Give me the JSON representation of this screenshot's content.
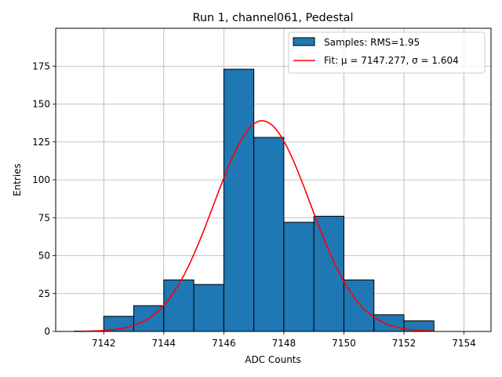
{
  "chart_data": {
    "type": "bar",
    "title": "Run 1, channel061, Pedestal",
    "xlabel": "ADC Counts",
    "ylabel": "Entries",
    "xlim": [
      7140.4,
      7154.9
    ],
    "ylim": [
      0,
      200
    ],
    "grid": true,
    "legend_position": "top-right",
    "x_ticks": [
      "7142",
      "7144",
      "7146",
      "7148",
      "7150",
      "7152",
      "7154"
    ],
    "y_ticks": [
      "0",
      "25",
      "50",
      "75",
      "100",
      "125",
      "150",
      "175"
    ],
    "bins": [
      {
        "x0": 7142,
        "x1": 7143,
        "count": 10
      },
      {
        "x0": 7143,
        "x1": 7144,
        "count": 17
      },
      {
        "x0": 7144,
        "x1": 7145,
        "count": 34
      },
      {
        "x0": 7145,
        "x1": 7146,
        "count": 31
      },
      {
        "x0": 7146,
        "x1": 7147,
        "count": 173
      },
      {
        "x0": 7147,
        "x1": 7148,
        "count": 128
      },
      {
        "x0": 7148,
        "x1": 7149,
        "count": 72
      },
      {
        "x0": 7149,
        "x1": 7150,
        "count": 76
      },
      {
        "x0": 7150,
        "x1": 7151,
        "count": 34
      },
      {
        "x0": 7151,
        "x1": 7152,
        "count": 11
      },
      {
        "x0": 7152,
        "x1": 7153,
        "count": 7
      }
    ],
    "fit": {
      "type": "gaussian",
      "mu": 7147.277,
      "sigma": 1.604,
      "amplitude": 139,
      "x_range": [
        7141,
        7153
      ]
    },
    "legend": [
      {
        "label": "Samples: RMS=1.95",
        "kind": "patch"
      },
      {
        "label": "Fit: μ = 7147.277, σ = 1.604",
        "kind": "line"
      }
    ],
    "colors": {
      "bars": "#1f77b4",
      "bar_edge": "#000000",
      "fit": "#ff0000",
      "grid": "#b0b0b0"
    }
  }
}
